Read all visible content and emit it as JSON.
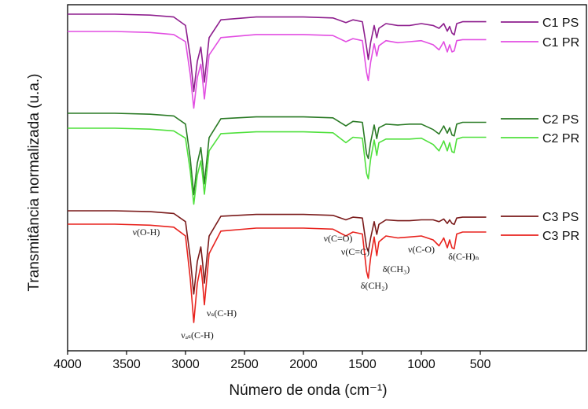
{
  "chart_data": {
    "type": "line",
    "title": "",
    "xlabel": "Número de onda (cm⁻¹)",
    "ylabel": "Transmitância normalizada (u.a.)",
    "xlim": [
      4000,
      0
    ],
    "xlim_note": "reversed x axis, ticks from 4000 to 500",
    "x_ticks": [
      4000,
      3500,
      3000,
      2500,
      2000,
      1500,
      1000,
      500
    ],
    "y_ticks": [],
    "grid": false,
    "legend": "right",
    "baselines_y_axis_note": "y axis unlabeled; series vertically offset",
    "series": [
      {
        "name": "C1 PS",
        "color": "#8e1f8e",
        "offset": 0.0,
        "x": [
          4000,
          3600,
          3300,
          3100,
          3000,
          2960,
          2930,
          2900,
          2870,
          2855,
          2840,
          2800,
          2700,
          2400,
          2000,
          1750,
          1640,
          1580,
          1500,
          1465,
          1450,
          1430,
          1400,
          1378,
          1360,
          1300,
          1200,
          1100,
          1000,
          900,
          850,
          810,
          780,
          760,
          740,
          721,
          700,
          650,
          600,
          500,
          450
        ],
        "y": [
          0.0,
          0.0,
          0.01,
          0.03,
          0.12,
          0.45,
          0.82,
          0.5,
          0.35,
          0.52,
          0.72,
          0.25,
          0.06,
          0.03,
          0.03,
          0.04,
          0.09,
          0.06,
          0.08,
          0.35,
          0.48,
          0.3,
          0.12,
          0.25,
          0.15,
          0.1,
          0.12,
          0.12,
          0.1,
          0.12,
          0.15,
          0.1,
          0.18,
          0.13,
          0.2,
          0.22,
          0.1,
          0.08,
          0.08,
          0.08,
          0.08
        ]
      },
      {
        "name": "C1 PR",
        "color": "#e24ee2",
        "offset": 0.0,
        "x": [
          4000,
          3600,
          3300,
          3100,
          3000,
          2960,
          2930,
          2900,
          2870,
          2855,
          2840,
          2800,
          2700,
          2400,
          2000,
          1750,
          1640,
          1580,
          1500,
          1465,
          1450,
          1430,
          1400,
          1378,
          1360,
          1300,
          1200,
          1100,
          1000,
          900,
          850,
          810,
          780,
          760,
          740,
          721,
          700,
          650,
          600,
          500,
          450
        ],
        "y": [
          0.0,
          0.0,
          0.01,
          0.03,
          0.1,
          0.42,
          0.75,
          0.45,
          0.32,
          0.48,
          0.66,
          0.23,
          0.06,
          0.03,
          0.03,
          0.04,
          0.1,
          0.07,
          0.09,
          0.4,
          0.48,
          0.3,
          0.12,
          0.24,
          0.14,
          0.09,
          0.11,
          0.1,
          0.09,
          0.13,
          0.18,
          0.1,
          0.2,
          0.13,
          0.2,
          0.19,
          0.09,
          0.08,
          0.08,
          0.08,
          0.08
        ]
      },
      {
        "name": "C2 PS",
        "color": "#2a7a25",
        "offset": 0.0,
        "x": [
          4000,
          3600,
          3300,
          3100,
          3000,
          2960,
          2930,
          2900,
          2870,
          2855,
          2840,
          2800,
          2700,
          2400,
          2000,
          1750,
          1640,
          1580,
          1500,
          1465,
          1450,
          1430,
          1400,
          1378,
          1360,
          1300,
          1200,
          1100,
          1000,
          900,
          850,
          810,
          780,
          760,
          740,
          721,
          700,
          650,
          600,
          500,
          450
        ],
        "y": [
          0.0,
          0.0,
          0.01,
          0.03,
          0.12,
          0.5,
          0.9,
          0.55,
          0.38,
          0.56,
          0.78,
          0.27,
          0.06,
          0.04,
          0.04,
          0.05,
          0.14,
          0.09,
          0.1,
          0.45,
          0.5,
          0.32,
          0.13,
          0.28,
          0.16,
          0.12,
          0.13,
          0.12,
          0.12,
          0.18,
          0.23,
          0.14,
          0.22,
          0.16,
          0.24,
          0.25,
          0.12,
          0.1,
          0.1,
          0.1,
          0.1
        ]
      },
      {
        "name": "C2 PR",
        "color": "#4fe03c",
        "offset": 0.0,
        "x": [
          4000,
          3600,
          3300,
          3100,
          3000,
          2960,
          2930,
          2900,
          2870,
          2855,
          2840,
          2800,
          2700,
          2400,
          2000,
          1750,
          1640,
          1580,
          1500,
          1465,
          1450,
          1430,
          1400,
          1378,
          1360,
          1300,
          1200,
          1100,
          1000,
          900,
          850,
          810,
          780,
          760,
          740,
          721,
          700,
          650,
          600,
          500,
          450
        ],
        "y": [
          0.0,
          0.0,
          0.01,
          0.03,
          0.11,
          0.47,
          0.84,
          0.52,
          0.36,
          0.53,
          0.73,
          0.25,
          0.06,
          0.04,
          0.04,
          0.05,
          0.16,
          0.1,
          0.11,
          0.5,
          0.56,
          0.34,
          0.13,
          0.3,
          0.16,
          0.12,
          0.12,
          0.12,
          0.11,
          0.18,
          0.25,
          0.14,
          0.25,
          0.16,
          0.26,
          0.27,
          0.12,
          0.1,
          0.1,
          0.1,
          0.1
        ]
      },
      {
        "name": "C3 PS",
        "color": "#7a1a1a",
        "offset": 0.0,
        "x": [
          4000,
          3600,
          3300,
          3100,
          3000,
          2960,
          2930,
          2900,
          2870,
          2855,
          2840,
          2800,
          2700,
          2400,
          2000,
          1750,
          1640,
          1580,
          1500,
          1465,
          1450,
          1430,
          1400,
          1378,
          1360,
          1300,
          1200,
          1100,
          1000,
          900,
          850,
          810,
          780,
          760,
          740,
          721,
          700,
          650,
          600,
          500,
          450
        ],
        "y": [
          0.0,
          0.0,
          0.01,
          0.03,
          0.12,
          0.52,
          0.92,
          0.56,
          0.4,
          0.58,
          0.8,
          0.28,
          0.06,
          0.04,
          0.04,
          0.05,
          0.1,
          0.07,
          0.08,
          0.4,
          0.45,
          0.3,
          0.12,
          0.26,
          0.15,
          0.1,
          0.11,
          0.11,
          0.1,
          0.1,
          0.12,
          0.09,
          0.14,
          0.1,
          0.14,
          0.15,
          0.08,
          0.07,
          0.07,
          0.07,
          0.07
        ]
      },
      {
        "name": "C3 PR",
        "color": "#e8231e",
        "offset": 0.0,
        "x": [
          4000,
          3600,
          3300,
          3100,
          3000,
          2960,
          2930,
          2900,
          2870,
          2855,
          2840,
          2800,
          2700,
          2400,
          2000,
          1750,
          1640,
          1580,
          1500,
          1465,
          1450,
          1430,
          1400,
          1378,
          1360,
          1300,
          1200,
          1100,
          1000,
          900,
          850,
          810,
          780,
          760,
          740,
          721,
          700,
          650,
          600,
          500,
          450
        ],
        "y": [
          0.0,
          0.0,
          0.01,
          0.03,
          0.12,
          0.55,
          1.0,
          0.6,
          0.42,
          0.6,
          0.82,
          0.3,
          0.07,
          0.04,
          0.04,
          0.05,
          0.12,
          0.08,
          0.1,
          0.48,
          0.55,
          0.34,
          0.13,
          0.32,
          0.18,
          0.12,
          0.14,
          0.13,
          0.12,
          0.16,
          0.22,
          0.14,
          0.24,
          0.16,
          0.24,
          0.25,
          0.1,
          0.08,
          0.08,
          0.08,
          0.08
        ]
      }
    ],
    "annotations": [
      {
        "text": "ν(O-H)",
        "x": 3450
      },
      {
        "text": "ν(C=O)",
        "x": 1640
      },
      {
        "text": "ν(C=C)",
        "x": 1600
      },
      {
        "text": "δ(CH₃)",
        "x": 1378
      },
      {
        "text": "ν(C-O)",
        "x": 1110
      },
      {
        "text": "δ(C-H)ₙ",
        "x": 780
      },
      {
        "text": "δ(CH₂)",
        "x": 1465
      },
      {
        "text": "νₛ(C-H)",
        "x": 2850
      },
      {
        "text": "νₐₛ(C-H)",
        "x": 2920
      }
    ]
  }
}
